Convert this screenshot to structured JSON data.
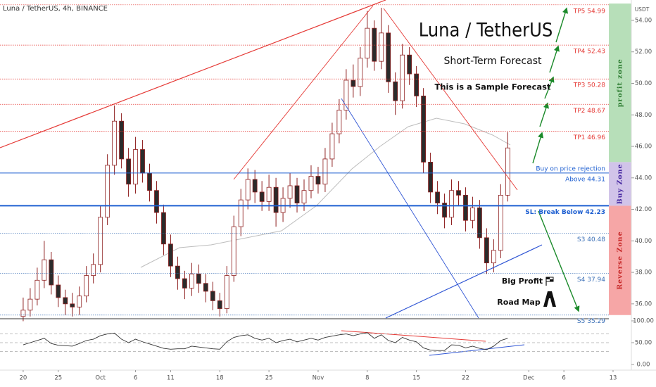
{
  "header": {
    "symbol": "Luna / TetherUS, 4h, BINANCE",
    "currency": "USDT"
  },
  "annotations": {
    "title": "Luna / TetherUS",
    "subtitle": "Short-Term Forecast",
    "note": "This is a Sample Forecast",
    "badge_top": "Big Profit",
    "badge_bottom": "Road Map"
  },
  "chart_data": {
    "type": "candlestick",
    "x": [
      0,
      1,
      2,
      3,
      4,
      5,
      6,
      7,
      8,
      9,
      10,
      11,
      12,
      13,
      14,
      15,
      16,
      17,
      18,
      19,
      20,
      21,
      22,
      23,
      24,
      25,
      26,
      27,
      28,
      29,
      30,
      31,
      32,
      33,
      34,
      35,
      36,
      37,
      38,
      39,
      40,
      41,
      42,
      43,
      44,
      45,
      46,
      47,
      48,
      49,
      50,
      51,
      52,
      53,
      54,
      55,
      56,
      57,
      58,
      59,
      60,
      61,
      62,
      63,
      64,
      65,
      66,
      67,
      68,
      69
    ],
    "open": [
      35.2,
      35.6,
      36.3,
      37.5,
      38.8,
      37.2,
      36.4,
      36.0,
      35.8,
      36.5,
      37.8,
      38.5,
      41.5,
      44.8,
      47.6,
      45.2,
      43.6,
      45.8,
      44.3,
      43.2,
      41.8,
      39.8,
      38.4,
      37.6,
      37.0,
      37.9,
      37.3,
      36.8,
      36.2,
      35.7,
      37.8,
      40.9,
      42.6,
      43.9,
      43.1,
      42.5,
      43.4,
      41.8,
      42.7,
      43.5,
      42.4,
      43.2,
      44.1,
      43.6,
      45.2,
      46.8,
      48.3,
      50.2,
      49.8,
      51.6,
      53.5,
      51.4,
      53.2,
      50.1,
      48.9,
      51.8,
      50.6,
      49.2,
      45.0,
      43.1,
      42.4,
      41.5,
      43.2,
      42.9,
      41.3,
      42.1,
      40.2,
      38.6,
      39.4,
      42.9
    ],
    "high": [
      36.4,
      37.0,
      38.3,
      40.0,
      39.3,
      37.8,
      36.9,
      36.7,
      37.1,
      38.4,
      39.2,
      42.2,
      45.5,
      48.6,
      48.1,
      45.9,
      46.6,
      46.4,
      44.9,
      43.8,
      42.3,
      40.4,
      39.0,
      38.1,
      38.6,
      38.5,
      37.9,
      37.4,
      36.7,
      38.4,
      41.6,
      43.3,
      44.6,
      44.5,
      43.8,
      44.2,
      44.0,
      43.4,
      44.3,
      44.0,
      43.9,
      44.8,
      44.7,
      45.9,
      47.5,
      49.0,
      50.9,
      51.2,
      52.3,
      54.6,
      54.0,
      54.8,
      53.7,
      50.7,
      52.5,
      52.3,
      51.1,
      49.7,
      45.6,
      43.8,
      43.0,
      43.9,
      43.8,
      43.4,
      42.8,
      42.6,
      40.8,
      40.1,
      43.6,
      46.9
    ],
    "low": [
      34.9,
      35.2,
      35.9,
      37.0,
      36.6,
      35.8,
      35.3,
      35.2,
      35.3,
      36.1,
      37.3,
      38.0,
      41.0,
      44.2,
      44.6,
      42.8,
      43.0,
      43.7,
      42.5,
      41.1,
      39.1,
      37.7,
      36.9,
      36.3,
      36.5,
      36.7,
      36.1,
      35.6,
      35.2,
      35.4,
      37.4,
      40.3,
      42.0,
      42.4,
      41.9,
      41.9,
      40.9,
      41.2,
      42.1,
      41.8,
      41.9,
      42.7,
      43.0,
      43.1,
      44.7,
      46.2,
      47.7,
      49.1,
      49.2,
      51.0,
      50.8,
      50.9,
      49.4,
      48.0,
      48.4,
      49.9,
      48.5,
      44.3,
      42.4,
      41.7,
      40.8,
      41.0,
      42.2,
      40.6,
      40.8,
      39.5,
      37.9,
      38.0,
      38.9,
      42.5
    ],
    "close": [
      35.6,
      36.3,
      37.5,
      38.8,
      37.2,
      36.4,
      36.0,
      35.8,
      36.5,
      37.8,
      38.5,
      41.5,
      44.8,
      47.6,
      45.2,
      43.6,
      45.8,
      44.3,
      43.2,
      41.8,
      39.8,
      38.4,
      37.6,
      37.0,
      37.9,
      37.3,
      36.8,
      36.2,
      35.7,
      37.8,
      40.9,
      42.6,
      43.9,
      43.1,
      42.5,
      43.4,
      41.8,
      42.7,
      43.5,
      42.4,
      43.2,
      44.1,
      43.6,
      45.2,
      46.8,
      48.3,
      50.2,
      49.8,
      51.6,
      53.5,
      51.4,
      53.2,
      50.1,
      48.9,
      51.8,
      50.6,
      49.2,
      45.0,
      43.1,
      42.4,
      41.5,
      43.2,
      42.9,
      41.3,
      42.1,
      40.2,
      38.6,
      39.4,
      42.9,
      45.9
    ],
    "up_color": "#ffffff",
    "down_color": "#2b2b2b",
    "outline_color": "#8e1f1f",
    "xlim": [
      -3.3,
      83.4
    ],
    "xticks": [
      {
        "value": 0,
        "label": "20"
      },
      {
        "value": 5,
        "label": "25"
      },
      {
        "value": 11,
        "label": "Oct"
      },
      {
        "value": 16,
        "label": "6"
      },
      {
        "value": 21,
        "label": "11"
      },
      {
        "value": 28,
        "label": "18"
      },
      {
        "value": 35,
        "label": "25"
      },
      {
        "value": 42,
        "label": "Nov"
      },
      {
        "value": 49,
        "label": "8"
      },
      {
        "value": 56,
        "label": "15"
      },
      {
        "value": 63,
        "label": "22"
      },
      {
        "value": 72,
        "label": "Dec"
      },
      {
        "value": 77,
        "label": "6"
      },
      {
        "value": 84,
        "label": "13"
      }
    ],
    "ylim": [
      35.1,
      55.07
    ],
    "yticks": [
      {
        "value": 36,
        "label": "36.00"
      },
      {
        "value": 38,
        "label": "38.00"
      },
      {
        "value": 40,
        "label": "40.00"
      },
      {
        "value": 42,
        "label": "42.00"
      },
      {
        "value": 44,
        "label": "44.00"
      },
      {
        "value": 46,
        "label": "46.00"
      },
      {
        "value": 48,
        "label": "48.00"
      },
      {
        "value": 50,
        "label": "50.00"
      },
      {
        "value": 52,
        "label": "52.00"
      },
      {
        "value": 54,
        "label": "54.00"
      }
    ],
    "levels": [
      {
        "value": 54.99,
        "label": "TP5 54.99",
        "color": "#e53935",
        "style": "dotted"
      },
      {
        "value": 52.43,
        "label": "TP4 52.43",
        "color": "#e53935",
        "style": "dotted"
      },
      {
        "value": 50.28,
        "label": "TP3 50.28",
        "color": "#e53935",
        "style": "dotted"
      },
      {
        "value": 48.67,
        "label": "TP2 48.67",
        "color": "#e53935",
        "style": "dotted"
      },
      {
        "value": 46.96,
        "label": "TP1 46.96",
        "color": "#e53935",
        "style": "dotted"
      },
      {
        "value": 44.31,
        "label": "Above 44.31",
        "caption": "Buy on price rejection",
        "color": "#1e5fd1",
        "style": "solid"
      },
      {
        "value": 42.23,
        "label": "SL: Break Below 42.23",
        "color": "#1e5fd1",
        "style": "thick"
      },
      {
        "value": 40.48,
        "label": "S3 40.48",
        "color": "#3b6fb6",
        "style": "dotted"
      },
      {
        "value": 37.94,
        "label": "S4 37.94",
        "color": "#3b6fb6",
        "style": "dotted"
      },
      {
        "value": 35.29,
        "label": "S5 35.29",
        "color": "#3b6fb6",
        "style": "dotted"
      }
    ],
    "zones": [
      {
        "label": "profit zone",
        "from": 45.0,
        "to": 55.07,
        "color": "#b7dfb9",
        "text_color": "#2e7d32"
      },
      {
        "label": "Buy Zone",
        "from": 42.23,
        "to": 45.0,
        "color": "#d1c4e9",
        "text_color": "#4527a0"
      },
      {
        "label": "Reverse Zone",
        "from": 35.29,
        "to": 42.23,
        "color": "#f6a6a6",
        "text_color": "#c62828"
      }
    ],
    "rsi": {
      "values": [
        45,
        50,
        55,
        60,
        48,
        44,
        43,
        42,
        48,
        55,
        58,
        66,
        70,
        72,
        58,
        50,
        58,
        52,
        47,
        42,
        37,
        35,
        36,
        36,
        42,
        40,
        38,
        36,
        35,
        52,
        62,
        66,
        68,
        60,
        56,
        60,
        50,
        55,
        58,
        52,
        56,
        60,
        56,
        62,
        65,
        68,
        70,
        66,
        70,
        73,
        60,
        68,
        55,
        50,
        62,
        56,
        52,
        38,
        33,
        32,
        32,
        45,
        44,
        38,
        42,
        37,
        34,
        42,
        55,
        60
      ],
      "ylim": [
        -11.3,
        101.6
      ],
      "yticks": [
        {
          "value": 0,
          "label": "0.00"
        },
        {
          "value": 50,
          "label": "50.00"
        },
        {
          "value": 100,
          "label": "100.00"
        }
      ],
      "levels": [
        70,
        50,
        30
      ],
      "color": "#333333"
    }
  }
}
